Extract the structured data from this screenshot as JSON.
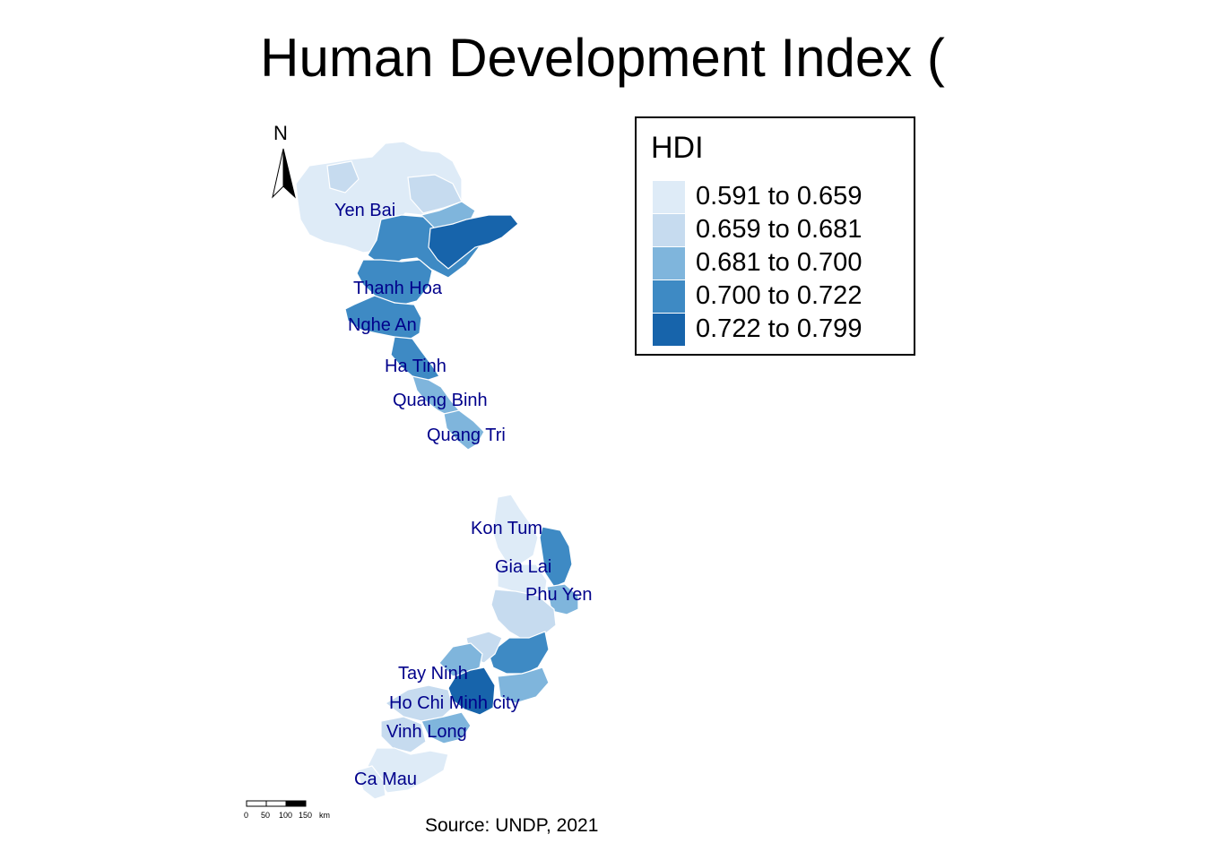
{
  "title": "Human Development Index (",
  "source": "Source: UNDP, 2021",
  "north_label": "N",
  "legend": {
    "title": "HDI",
    "items": [
      {
        "label": "0.591 to 0.659",
        "color": "#deebf7"
      },
      {
        "label": "0.659 to 0.681",
        "color": "#c6dbef"
      },
      {
        "label": "0.681 to 0.700",
        "color": "#7fb5dc"
      },
      {
        "label": "0.700 to 0.722",
        "color": "#3e8ac4"
      },
      {
        "label": "0.722 to 0.799",
        "color": "#1764ab"
      }
    ]
  },
  "scale_bar": {
    "ticks": [
      "0",
      "50",
      "100",
      "150"
    ],
    "unit": "km"
  },
  "province_labels": [
    "Yen Bai",
    "Thanh Hoa",
    "Nghe An",
    "Ha Tinh",
    "Quang Binh",
    "Quang Tri",
    "Kon Tum",
    "Gia Lai",
    "Phu Yen",
    "Tay Ninh",
    "Ho Chi Minh city",
    "Vinh Long",
    "Ca Mau"
  ]
}
